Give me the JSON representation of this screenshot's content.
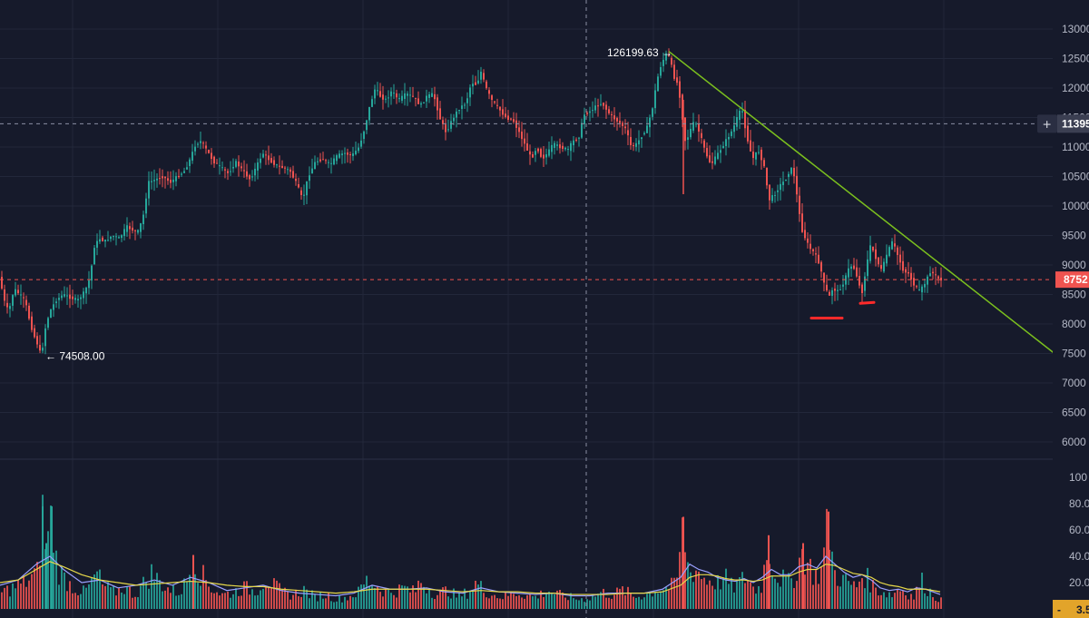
{
  "chart_data": {
    "type": "candlestick",
    "colors": {
      "up": "#26a69a",
      "down": "#ef5350",
      "trendline": "#7cc11e",
      "ma_fast": "#9aa0ff",
      "ma_slow": "#e6d84a",
      "background": "#161a2b",
      "grid": "#22273a"
    },
    "price_axis": {
      "labels": [
        "13000",
        "12500",
        "12000",
        "11500",
        "11000",
        "10500",
        "10000",
        "9500",
        "9000",
        "8500",
        "8000",
        "7500",
        "7000",
        "6500",
        "6000"
      ],
      "ylim": [
        60000,
        130000
      ]
    },
    "volume_axis": {
      "labels": [
        "100",
        "80.0",
        "60.0",
        "40.0",
        "20.0"
      ],
      "ylim": [
        0,
        100
      ]
    },
    "annotations": {
      "high_label": "126199.63 →",
      "low_label": "← 74508.00",
      "high_value": 126199.63,
      "low_value": 74508.0
    },
    "crosshair": {
      "price_label": "11395",
      "price": 113950,
      "button_glyph": "+"
    },
    "last_price": {
      "label": "8752",
      "value": 87520
    },
    "volume_badge": {
      "prefix": "-",
      "label": "3.5"
    },
    "trendline": {
      "from_value": 126200,
      "to_value": 75000
    },
    "support_marks": [
      81000,
      83500
    ],
    "price_path": [
      [
        0,
        88000
      ],
      [
        5,
        84000
      ],
      [
        10,
        82000
      ],
      [
        16,
        86000
      ],
      [
        22,
        85000
      ],
      [
        28,
        84000
      ],
      [
        34,
        80000
      ],
      [
        38,
        78000
      ],
      [
        42,
        76500
      ],
      [
        46,
        74508
      ],
      [
        50,
        79000
      ],
      [
        55,
        82000
      ],
      [
        62,
        84000
      ],
      [
        70,
        85000
      ],
      [
        78,
        84500
      ],
      [
        86,
        84000
      ],
      [
        94,
        85500
      ],
      [
        100,
        88000
      ],
      [
        104,
        93000
      ],
      [
        110,
        94500
      ],
      [
        116,
        94000
      ],
      [
        124,
        95000
      ],
      [
        132,
        94500
      ],
      [
        140,
        96500
      ],
      [
        146,
        96000
      ],
      [
        152,
        95500
      ],
      [
        158,
        98000
      ],
      [
        164,
        104000
      ],
      [
        172,
        104500
      ],
      [
        180,
        105000
      ],
      [
        188,
        104000
      ],
      [
        196,
        105000
      ],
      [
        204,
        106000
      ],
      [
        210,
        108000
      ],
      [
        216,
        110500
      ],
      [
        222,
        111000
      ],
      [
        228,
        109500
      ],
      [
        236,
        107500
      ],
      [
        244,
        106500
      ],
      [
        252,
        105500
      ],
      [
        260,
        107500
      ],
      [
        268,
        106000
      ],
      [
        276,
        104500
      ],
      [
        284,
        107000
      ],
      [
        290,
        109000
      ],
      [
        296,
        108000
      ],
      [
        304,
        107000
      ],
      [
        312,
        106500
      ],
      [
        320,
        106000
      ],
      [
        328,
        103500
      ],
      [
        334,
        101000
      ],
      [
        340,
        105000
      ],
      [
        348,
        107500
      ],
      [
        356,
        108000
      ],
      [
        364,
        107000
      ],
      [
        372,
        108500
      ],
      [
        380,
        109000
      ],
      [
        388,
        108500
      ],
      [
        396,
        110000
      ],
      [
        402,
        113000
      ],
      [
        408,
        117000
      ],
      [
        414,
        120000
      ],
      [
        420,
        118500
      ],
      [
        426,
        118000
      ],
      [
        432,
        119500
      ],
      [
        440,
        118000
      ],
      [
        448,
        119000
      ],
      [
        456,
        118500
      ],
      [
        464,
        117000
      ],
      [
        470,
        118500
      ],
      [
        478,
        119000
      ],
      [
        486,
        114500
      ],
      [
        492,
        112500
      ],
      [
        500,
        115000
      ],
      [
        506,
        116500
      ],
      [
        514,
        117500
      ],
      [
        520,
        121000
      ],
      [
        526,
        120500
      ],
      [
        530,
        123000
      ],
      [
        536,
        120000
      ],
      [
        542,
        118000
      ],
      [
        550,
        116500
      ],
      [
        558,
        115000
      ],
      [
        566,
        114500
      ],
      [
        574,
        112000
      ],
      [
        580,
        110000
      ],
      [
        586,
        108000
      ],
      [
        592,
        110000
      ],
      [
        598,
        108000
      ],
      [
        604,
        109000
      ],
      [
        610,
        110500
      ],
      [
        618,
        110000
      ],
      [
        626,
        109500
      ],
      [
        632,
        111000
      ],
      [
        638,
        111500
      ],
      [
        644,
        115500
      ],
      [
        650,
        116000
      ],
      [
        658,
        117000
      ],
      [
        664,
        117500
      ],
      [
        670,
        116000
      ],
      [
        676,
        115000
      ],
      [
        684,
        114000
      ],
      [
        690,
        113000
      ],
      [
        696,
        110000
      ],
      [
        702,
        110500
      ],
      [
        708,
        112000
      ],
      [
        714,
        113500
      ],
      [
        720,
        117000
      ],
      [
        724,
        121000
      ],
      [
        728,
        123500
      ],
      [
        732,
        125000
      ],
      [
        736,
        126199
      ],
      [
        740,
        124000
      ],
      [
        744,
        121500
      ],
      [
        748,
        120500
      ],
      [
        752,
        115500
      ],
      [
        756,
        110500
      ],
      [
        760,
        112500
      ],
      [
        766,
        114500
      ],
      [
        772,
        112000
      ],
      [
        778,
        109000
      ],
      [
        784,
        107000
      ],
      [
        790,
        108500
      ],
      [
        796,
        110000
      ],
      [
        802,
        111500
      ],
      [
        808,
        113000
      ],
      [
        814,
        115500
      ],
      [
        818,
        116500
      ],
      [
        822,
        113000
      ],
      [
        826,
        110000
      ],
      [
        830,
        108000
      ],
      [
        836,
        109500
      ],
      [
        842,
        107000
      ],
      [
        848,
        101000
      ],
      [
        854,
        102000
      ],
      [
        860,
        103500
      ],
      [
        866,
        104500
      ],
      [
        872,
        106500
      ],
      [
        876,
        105000
      ],
      [
        880,
        100000
      ],
      [
        884,
        96000
      ],
      [
        888,
        94500
      ],
      [
        892,
        93000
      ],
      [
        898,
        92000
      ],
      [
        904,
        90000
      ],
      [
        908,
        87000
      ],
      [
        914,
        84500
      ],
      [
        918,
        86000
      ],
      [
        924,
        85500
      ],
      [
        930,
        87000
      ],
      [
        936,
        89500
      ],
      [
        940,
        90000
      ],
      [
        944,
        88500
      ],
      [
        950,
        85000
      ],
      [
        956,
        90500
      ],
      [
        960,
        93500
      ],
      [
        966,
        91000
      ],
      [
        972,
        89000
      ],
      [
        978,
        92000
      ],
      [
        984,
        94000
      ],
      [
        990,
        91500
      ],
      [
        996,
        89000
      ],
      [
        1002,
        88500
      ],
      [
        1008,
        86500
      ],
      [
        1014,
        85500
      ],
      [
        1020,
        87000
      ],
      [
        1026,
        89000
      ],
      [
        1032,
        88000
      ],
      [
        1036,
        87520
      ]
    ],
    "volume_bars": [
      [
        0,
        14
      ],
      [
        14,
        18
      ],
      [
        26,
        22
      ],
      [
        40,
        30
      ],
      [
        46,
        78
      ],
      [
        50,
        50
      ],
      [
        56,
        78
      ],
      [
        62,
        35
      ],
      [
        70,
        26
      ],
      [
        80,
        18
      ],
      [
        92,
        14
      ],
      [
        100,
        22
      ],
      [
        106,
        30
      ],
      [
        112,
        20
      ],
      [
        124,
        14
      ],
      [
        136,
        18
      ],
      [
        148,
        12
      ],
      [
        160,
        24
      ],
      [
        166,
        30
      ],
      [
        176,
        22
      ],
      [
        186,
        16
      ],
      [
        196,
        14
      ],
      [
        204,
        22
      ],
      [
        212,
        41
      ],
      [
        222,
        28
      ],
      [
        232,
        18
      ],
      [
        244,
        12
      ],
      [
        256,
        14
      ],
      [
        268,
        18
      ],
      [
        280,
        15
      ],
      [
        292,
        26
      ],
      [
        300,
        20
      ],
      [
        310,
        14
      ],
      [
        322,
        12
      ],
      [
        334,
        16
      ],
      [
        346,
        10
      ],
      [
        358,
        12
      ],
      [
        370,
        8
      ],
      [
        382,
        10
      ],
      [
        394,
        14
      ],
      [
        402,
        24
      ],
      [
        410,
        22
      ],
      [
        420,
        16
      ],
      [
        432,
        14
      ],
      [
        444,
        18
      ],
      [
        456,
        14
      ],
      [
        462,
        24
      ],
      [
        470,
        18
      ],
      [
        480,
        12
      ],
      [
        492,
        16
      ],
      [
        504,
        10
      ],
      [
        514,
        14
      ],
      [
        524,
        22
      ],
      [
        532,
        16
      ],
      [
        542,
        12
      ],
      [
        554,
        10
      ],
      [
        566,
        14
      ],
      [
        578,
        12
      ],
      [
        590,
        10
      ],
      [
        602,
        16
      ],
      [
        614,
        12
      ],
      [
        626,
        10
      ],
      [
        638,
        8
      ],
      [
        650,
        10
      ],
      [
        662,
        14
      ],
      [
        674,
        12
      ],
      [
        686,
        16
      ],
      [
        698,
        10
      ],
      [
        710,
        12
      ],
      [
        722,
        16
      ],
      [
        734,
        18
      ],
      [
        744,
        20
      ],
      [
        752,
        70
      ],
      [
        758,
        30
      ],
      [
        766,
        34
      ],
      [
        774,
        26
      ],
      [
        782,
        24
      ],
      [
        790,
        22
      ],
      [
        798,
        26
      ],
      [
        806,
        18
      ],
      [
        814,
        22
      ],
      [
        822,
        28
      ],
      [
        830,
        16
      ],
      [
        838,
        20
      ],
      [
        846,
        56
      ],
      [
        852,
        30
      ],
      [
        860,
        26
      ],
      [
        868,
        22
      ],
      [
        876,
        30
      ],
      [
        884,
        50
      ],
      [
        890,
        36
      ],
      [
        898,
        28
      ],
      [
        904,
        32
      ],
      [
        912,
        74
      ],
      [
        918,
        30
      ],
      [
        926,
        26
      ],
      [
        934,
        22
      ],
      [
        942,
        18
      ],
      [
        950,
        30
      ],
      [
        958,
        22
      ],
      [
        966,
        16
      ],
      [
        974,
        14
      ],
      [
        982,
        12
      ],
      [
        990,
        18
      ],
      [
        998,
        14
      ],
      [
        1006,
        10
      ],
      [
        1014,
        24
      ],
      [
        1022,
        16
      ],
      [
        1030,
        10
      ],
      [
        1036,
        8
      ]
    ],
    "ma_fast": [
      [
        0,
        18
      ],
      [
        20,
        22
      ],
      [
        40,
        34
      ],
      [
        55,
        40
      ],
      [
        70,
        30
      ],
      [
        90,
        20
      ],
      [
        110,
        22
      ],
      [
        130,
        16
      ],
      [
        150,
        18
      ],
      [
        170,
        22
      ],
      [
        190,
        18
      ],
      [
        210,
        24
      ],
      [
        230,
        20
      ],
      [
        250,
        14
      ],
      [
        270,
        16
      ],
      [
        290,
        18
      ],
      [
        310,
        14
      ],
      [
        330,
        12
      ],
      [
        350,
        11
      ],
      [
        370,
        10
      ],
      [
        390,
        12
      ],
      [
        410,
        18
      ],
      [
        430,
        15
      ],
      [
        450,
        15
      ],
      [
        470,
        16
      ],
      [
        490,
        13
      ],
      [
        510,
        12
      ],
      [
        530,
        16
      ],
      [
        550,
        13
      ],
      [
        570,
        12
      ],
      [
        590,
        11
      ],
      [
        610,
        12
      ],
      [
        630,
        10
      ],
      [
        650,
        10
      ],
      [
        670,
        12
      ],
      [
        690,
        12
      ],
      [
        710,
        12
      ],
      [
        730,
        15
      ],
      [
        750,
        24
      ],
      [
        760,
        34
      ],
      [
        770,
        30
      ],
      [
        780,
        28
      ],
      [
        790,
        24
      ],
      [
        800,
        22
      ],
      [
        810,
        21
      ],
      [
        820,
        23
      ],
      [
        830,
        20
      ],
      [
        840,
        24
      ],
      [
        850,
        30
      ],
      [
        860,
        26
      ],
      [
        870,
        26
      ],
      [
        880,
        32
      ],
      [
        890,
        34
      ],
      [
        900,
        31
      ],
      [
        910,
        40
      ],
      [
        920,
        34
      ],
      [
        930,
        28
      ],
      [
        940,
        24
      ],
      [
        950,
        26
      ],
      [
        960,
        22
      ],
      [
        970,
        16
      ],
      [
        980,
        14
      ],
      [
        990,
        15
      ],
      [
        1000,
        13
      ],
      [
        1010,
        16
      ],
      [
        1020,
        15
      ],
      [
        1036,
        11
      ]
    ],
    "ma_slow": [
      [
        0,
        20
      ],
      [
        20,
        22
      ],
      [
        40,
        30
      ],
      [
        55,
        36
      ],
      [
        70,
        32
      ],
      [
        90,
        26
      ],
      [
        110,
        22
      ],
      [
        130,
        20
      ],
      [
        150,
        18
      ],
      [
        170,
        19
      ],
      [
        190,
        20
      ],
      [
        210,
        21
      ],
      [
        230,
        20
      ],
      [
        250,
        18
      ],
      [
        270,
        17
      ],
      [
        290,
        17
      ],
      [
        310,
        15
      ],
      [
        330,
        14
      ],
      [
        350,
        13
      ],
      [
        370,
        12
      ],
      [
        390,
        13
      ],
      [
        410,
        15
      ],
      [
        430,
        15
      ],
      [
        450,
        15
      ],
      [
        470,
        15
      ],
      [
        490,
        14
      ],
      [
        510,
        13
      ],
      [
        530,
        14
      ],
      [
        550,
        13
      ],
      [
        570,
        13
      ],
      [
        590,
        12
      ],
      [
        610,
        12
      ],
      [
        630,
        11
      ],
      [
        650,
        11
      ],
      [
        670,
        11
      ],
      [
        690,
        12
      ],
      [
        710,
        12
      ],
      [
        730,
        13
      ],
      [
        750,
        18
      ],
      [
        760,
        24
      ],
      [
        770,
        26
      ],
      [
        780,
        26
      ],
      [
        790,
        25
      ],
      [
        800,
        23
      ],
      [
        810,
        22
      ],
      [
        820,
        22
      ],
      [
        830,
        21
      ],
      [
        840,
        22
      ],
      [
        850,
        25
      ],
      [
        860,
        25
      ],
      [
        870,
        25
      ],
      [
        880,
        28
      ],
      [
        890,
        30
      ],
      [
        900,
        30
      ],
      [
        910,
        34
      ],
      [
        920,
        33
      ],
      [
        930,
        30
      ],
      [
        940,
        27
      ],
      [
        950,
        26
      ],
      [
        960,
        24
      ],
      [
        970,
        20
      ],
      [
        980,
        18
      ],
      [
        990,
        17
      ],
      [
        1000,
        15
      ],
      [
        1010,
        15
      ],
      [
        1020,
        15
      ],
      [
        1036,
        13
      ]
    ]
  }
}
